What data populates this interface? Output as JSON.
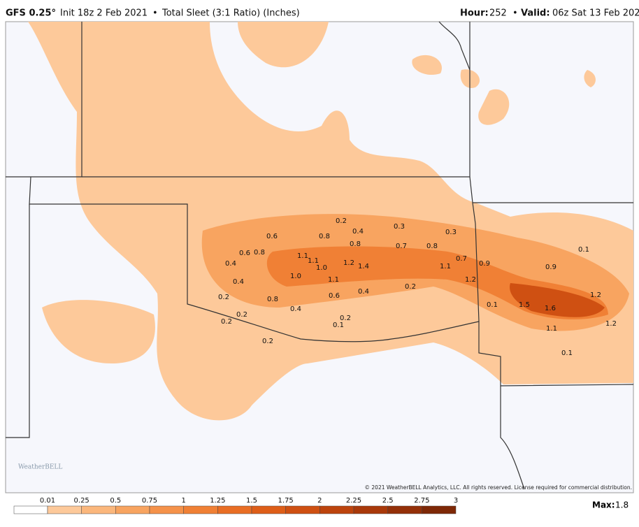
{
  "header": {
    "model": "GFS 0.25°",
    "init": "Init 18z 2 Feb 2021",
    "bullet": "•",
    "product": "Total Sleet (3:1 Ratio) (Inches)",
    "hour_label": "Hour:",
    "hour": "252",
    "valid_label": "Valid:",
    "valid": "06z Sat 13 Feb 2021"
  },
  "map": {
    "labels": [
      "0.2",
      "0.4",
      "0.3",
      "0.3",
      "0.6",
      "0.8",
      "0.8",
      "0.7",
      "0.8",
      "0.6",
      "0.8",
      "1.1",
      "1.1",
      "0.7",
      "0.4",
      "1.2",
      "1.4",
      "1.0",
      "1.1",
      "0.9",
      "0.1",
      "0.9",
      "1.0",
      "0.4",
      "1.1",
      "1.2",
      "0.2",
      "0.4",
      "0.6",
      "0.2",
      "0.8",
      "0.1",
      "1.5",
      "1.6",
      "1.2",
      "0.4",
      "0.2",
      "0.2",
      "0.2",
      "0.1",
      "1.1",
      "1.2",
      "0.2",
      "0.1"
    ],
    "copyright": "© 2021 WeatherBELL Analytics, LLC. All rights reserved. License required for commercial distribution.",
    "logo": "WeatherBELL"
  },
  "colorbar": {
    "ticks": [
      "0.01",
      "0.25",
      "0.5",
      "0.75",
      "1",
      "1.25",
      "1.5",
      "1.75",
      "2",
      "2.25",
      "2.5",
      "2.75",
      "3"
    ],
    "colors": [
      "#ffffff",
      "#fdc99a",
      "#fbb77c",
      "#f8a460",
      "#f5924a",
      "#f08035",
      "#e96e24",
      "#de5e18",
      "#cf5012",
      "#bd440d",
      "#a9390a",
      "#943008",
      "#7e2806"
    ],
    "max_label": "Max:",
    "max": "1.8"
  }
}
